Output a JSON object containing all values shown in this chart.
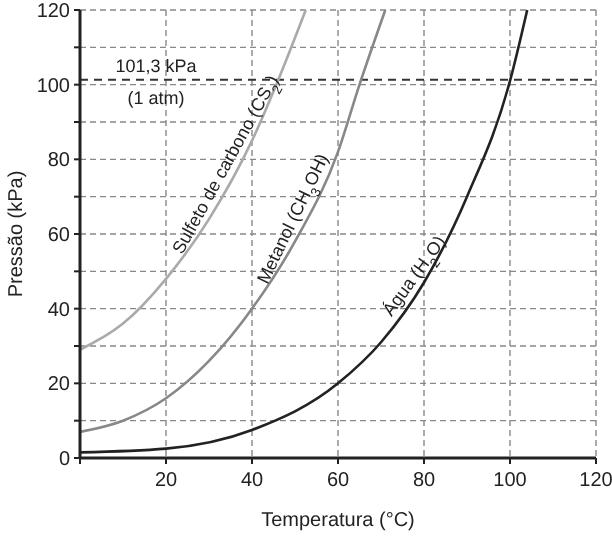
{
  "chart_data": {
    "type": "line",
    "xlabel": "Temperatura (°C)",
    "ylabel": "Pressão (kPa)",
    "xlim": [
      0,
      120
    ],
    "xticks": [
      {
        "value": 0,
        "label": null
      },
      20,
      40,
      60,
      80,
      100,
      120
    ],
    "ylim": [
      0,
      120
    ],
    "yticks": [
      0,
      {
        "value": 10,
        "label": null
      },
      20,
      {
        "value": 30,
        "label": null
      },
      40,
      {
        "value": 50,
        "label": null
      },
      60,
      {
        "value": 70,
        "label": null
      },
      80,
      {
        "value": 90,
        "label": null
      },
      100,
      {
        "value": 110,
        "label": null
      },
      120
    ],
    "grid": true,
    "line_style": "solid",
    "marker": "none",
    "series": [
      {
        "name": "Sulfeto de carbono (CS$_{2}$)",
        "color": "#aaaaaa",
        "x": [
          0,
          10,
          20,
          30,
          40,
          46,
          52.5
        ],
        "values": [
          29,
          36,
          48,
          64,
          85,
          101,
          120
        ]
      },
      {
        "name": "Metanol (CH$_{3}$OH)",
        "color": "#888888",
        "x": [
          0,
          10,
          20,
          30,
          40,
          50,
          60,
          65,
          71
        ],
        "values": [
          7,
          10,
          16,
          26,
          40,
          58,
          82,
          100,
          120
        ]
      },
      {
        "name": "Água (H$_{2}$O)",
        "color": "#222222",
        "x": [
          0,
          20,
          40,
          60,
          70,
          80,
          90,
          100,
          104
        ],
        "values": [
          1.5,
          2.5,
          7.5,
          20,
          31,
          47,
          70,
          101,
          120
        ]
      }
    ],
    "ref_lines": [
      {
        "axis": "y",
        "value": 101.3,
        "label": "101,3 kPa\n(1 atm)",
        "color": "#333333",
        "line_style": "dashed"
      }
    ]
  }
}
